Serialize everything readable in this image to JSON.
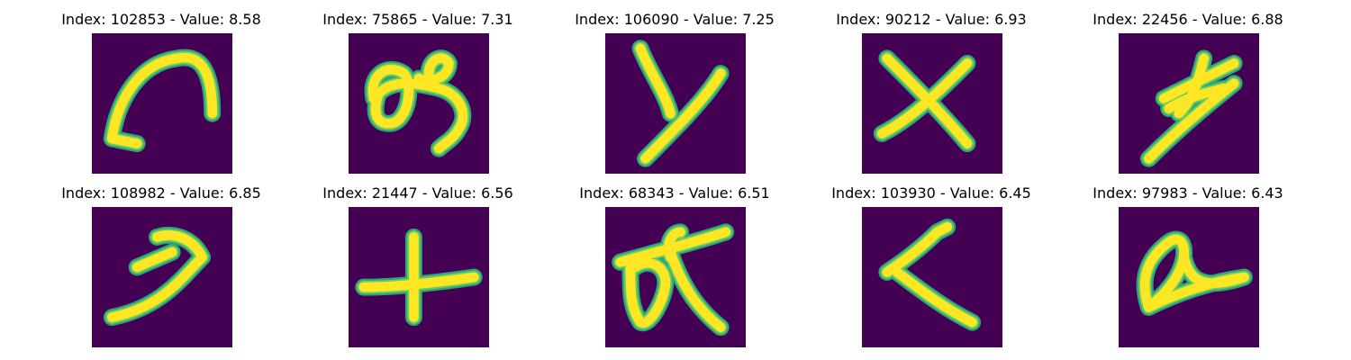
{
  "colors": {
    "background": "#440154",
    "stroke_outer": "#2aa57e",
    "stroke_mid": "#6fce5a",
    "stroke_core": "#fde725"
  },
  "panels": [
    {
      "title": "Index: 102853 - Value: 8.58",
      "glyph": "curve-arc"
    },
    {
      "title": "Index: 75865 - Value: 7.31",
      "glyph": "loop-letter"
    },
    {
      "title": "Index: 106090 - Value: 7.25",
      "glyph": "y-shape"
    },
    {
      "title": "Index: 90212 - Value: 6.93",
      "glyph": "x-shape"
    },
    {
      "title": "Index: 22456 - Value: 6.88",
      "glyph": "slanted-symbol"
    },
    {
      "title": "Index: 108982 - Value: 6.85",
      "glyph": "seven-shape"
    },
    {
      "title": "Index: 21447 - Value: 6.56",
      "glyph": "plus-shape"
    },
    {
      "title": "Index: 68343 - Value: 6.51",
      "glyph": "alpha-cross"
    },
    {
      "title": "Index: 103930 - Value: 6.45",
      "glyph": "angle-shape"
    },
    {
      "title": "Index: 97983 - Value: 6.43",
      "glyph": "a-loop"
    }
  ]
}
